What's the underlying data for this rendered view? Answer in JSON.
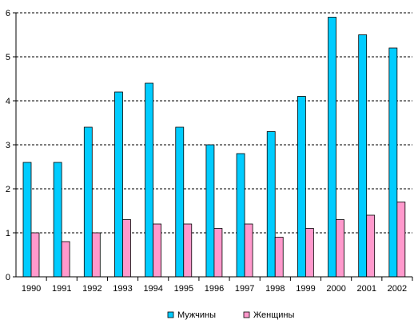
{
  "chart_data": {
    "type": "bar",
    "title": "",
    "xlabel": "",
    "ylabel": "",
    "categories": [
      "1990",
      "1991",
      "1992",
      "1993",
      "1994",
      "1995",
      "1996",
      "1997",
      "1998",
      "1999",
      "2000",
      "2001",
      "2002"
    ],
    "series": [
      {
        "name": "Мужчины",
        "color": "#00ccff",
        "values": [
          2.6,
          2.6,
          3.4,
          4.2,
          4.4,
          3.4,
          3.0,
          2.8,
          3.3,
          4.1,
          5.9,
          5.5,
          5.2
        ]
      },
      {
        "name": "Женщины",
        "color": "#ff99cc",
        "values": [
          1.0,
          0.8,
          1.0,
          1.3,
          1.2,
          1.2,
          1.1,
          1.2,
          0.9,
          1.1,
          1.3,
          1.4,
          1.7
        ]
      }
    ],
    "ylim": [
      0,
      6
    ],
    "yticks": [
      "0",
      "1",
      "2",
      "3",
      "4",
      "5",
      "6"
    ],
    "grid": "horizontal dashed",
    "legend_position": "bottom"
  }
}
